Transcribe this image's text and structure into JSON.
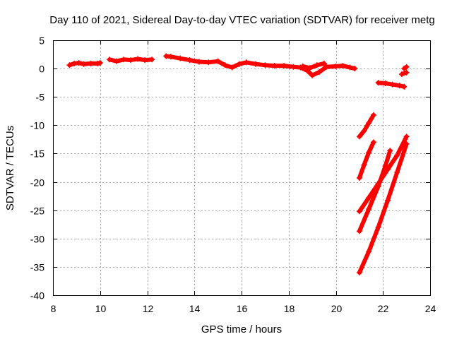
{
  "chart_data": {
    "type": "scatter",
    "title": "Day 110 of 2021, Sidereal Day-to-day VTEC variation (SDTVAR) for receiver metg",
    "xlabel": "GPS time / hours",
    "ylabel": "SDTVAR / TECUs",
    "xlim": [
      8,
      24
    ],
    "ylim": [
      -40,
      5
    ],
    "xticks": [
      8,
      10,
      12,
      14,
      16,
      18,
      20,
      22,
      24
    ],
    "yticks": [
      5,
      0,
      -5,
      -10,
      -15,
      -20,
      -25,
      -30,
      -35,
      -40
    ],
    "grid": true,
    "marker_color": "#ff0000",
    "marker": "plus",
    "series": [
      {
        "segments": [
          [
            [
              8.7,
              0.6
            ],
            [
              8.9,
              0.9
            ],
            [
              9.1,
              1.0
            ],
            [
              9.3,
              0.8
            ],
            [
              9.6,
              0.9
            ],
            [
              9.9,
              0.9
            ],
            [
              10.0,
              1.0
            ]
          ],
          [
            [
              10.4,
              1.6
            ],
            [
              10.7,
              1.3
            ],
            [
              11.0,
              1.6
            ],
            [
              11.3,
              1.5
            ],
            [
              11.6,
              1.7
            ],
            [
              11.9,
              1.5
            ],
            [
              12.2,
              1.6
            ]
          ],
          [
            [
              12.8,
              2.2
            ],
            [
              13.0,
              2.1
            ],
            [
              13.4,
              1.8
            ],
            [
              13.8,
              1.5
            ],
            [
              14.2,
              1.2
            ],
            [
              14.6,
              1.1
            ],
            [
              15.0,
              1.3
            ],
            [
              15.3,
              0.6
            ],
            [
              15.6,
              0.2
            ],
            [
              15.9,
              0.8
            ],
            [
              16.2,
              1.1
            ],
            [
              16.6,
              0.8
            ],
            [
              17.0,
              0.6
            ],
            [
              17.4,
              0.5
            ],
            [
              17.8,
              0.5
            ],
            [
              18.2,
              0.3
            ],
            [
              18.5,
              0.2
            ],
            [
              18.8,
              -0.4
            ],
            [
              19.0,
              -1.2
            ],
            [
              19.3,
              -0.6
            ],
            [
              19.6,
              0.3
            ],
            [
              20.0,
              0.4
            ],
            [
              20.3,
              0.5
            ],
            [
              20.6,
              0.2
            ],
            [
              20.8,
              0.0
            ]
          ],
          [
            [
              18.6,
              0.4
            ],
            [
              18.9,
              0.1
            ],
            [
              19.2,
              0.6
            ],
            [
              19.5,
              0.9
            ]
          ],
          [
            [
              21.8,
              -2.5
            ],
            [
              22.1,
              -2.6
            ],
            [
              22.4,
              -2.8
            ],
            [
              22.7,
              -3.0
            ],
            [
              22.9,
              -3.2
            ]
          ],
          [
            [
              22.8,
              -1.0
            ],
            [
              23.0,
              -0.7
            ]
          ],
          [
            [
              22.9,
              0.0
            ],
            [
              23.0,
              0.3
            ]
          ],
          [
            [
              21.0,
              -12.0
            ],
            [
              21.2,
              -11.0
            ],
            [
              21.4,
              -9.6
            ],
            [
              21.6,
              -8.2
            ]
          ],
          [
            [
              21.0,
              -19.3
            ],
            [
              21.2,
              -17.0
            ],
            [
              21.4,
              -14.8
            ],
            [
              21.6,
              -13.0
            ]
          ],
          [
            [
              21.0,
              -25.2
            ],
            [
              21.4,
              -22.8
            ],
            [
              21.8,
              -20.3
            ],
            [
              22.2,
              -17.8
            ],
            [
              22.6,
              -15.3
            ],
            [
              23.0,
              -12.0
            ]
          ],
          [
            [
              21.0,
              -28.7
            ],
            [
              21.4,
              -24.8
            ],
            [
              21.8,
              -20.8
            ],
            [
              22.1,
              -17.2
            ],
            [
              22.3,
              -14.5
            ]
          ],
          [
            [
              21.0,
              -36.0
            ],
            [
              21.4,
              -32.3
            ],
            [
              21.8,
              -28.0
            ],
            [
              22.2,
              -23.3
            ],
            [
              22.6,
              -18.3
            ],
            [
              23.0,
              -13.3
            ]
          ]
        ]
      }
    ]
  }
}
